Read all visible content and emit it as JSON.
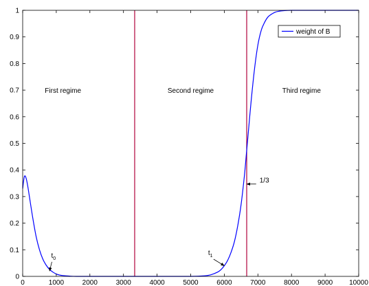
{
  "chart_data": {
    "type": "line",
    "xlim": [
      0,
      10000
    ],
    "ylim": [
      0,
      1
    ],
    "x_ticks": [
      0,
      1000,
      2000,
      3000,
      4000,
      5000,
      6000,
      7000,
      8000,
      9000,
      10000
    ],
    "y_ticks": [
      0,
      0.1,
      0.2,
      0.3,
      0.4,
      0.5,
      0.6,
      0.7,
      0.8,
      0.9,
      1
    ],
    "grid": false,
    "legend": {
      "position": "top-right",
      "entries": [
        "weight of B"
      ]
    },
    "series": [
      {
        "name": "weight of B",
        "color": "#0000ff",
        "x": [
          0,
          50,
          100,
          150,
          200,
          300,
          400,
          500,
          600,
          700,
          800,
          900,
          1000,
          1100,
          1200,
          1400,
          1600,
          2000,
          3000,
          4000,
          5000,
          5400,
          5600,
          5800,
          5900,
          6000,
          6100,
          6200,
          6300,
          6400,
          6500,
          6600,
          6650,
          6700,
          6800,
          6900,
          7000,
          7100,
          7200,
          7300,
          7400,
          7500,
          7600,
          7800,
          8000,
          8500,
          9000,
          10000
        ],
        "y": [
          0.33,
          0.375,
          0.37,
          0.34,
          0.3,
          0.22,
          0.15,
          0.1,
          0.065,
          0.042,
          0.026,
          0.016,
          0.009,
          0.005,
          0.003,
          0.001,
          0.0,
          0.0,
          0.0,
          0.0,
          0.0,
          0.002,
          0.006,
          0.016,
          0.025,
          0.04,
          0.06,
          0.09,
          0.13,
          0.19,
          0.27,
          0.38,
          0.45,
          0.52,
          0.66,
          0.78,
          0.87,
          0.925,
          0.955,
          0.975,
          0.985,
          0.992,
          0.996,
          0.999,
          1.0,
          1.0,
          1.0,
          1.0
        ]
      }
    ],
    "vertical_lines": [
      {
        "x": 3333,
        "color": "#b0003a"
      },
      {
        "x": 6667,
        "color": "#b0003a"
      }
    ],
    "regions": [
      {
        "label": "First regime",
        "x": 1200,
        "y": 0.7
      },
      {
        "label": "Second regime",
        "x": 5000,
        "y": 0.7
      },
      {
        "label": "Third regime",
        "x": 8300,
        "y": 0.7
      }
    ],
    "annotations": [
      {
        "id": "t0",
        "label": "t",
        "sub": "0",
        "arrow_to": [
          800,
          0.02
        ],
        "text_at": [
          930,
          0.065
        ]
      },
      {
        "id": "t1",
        "label": "t",
        "sub": "1",
        "arrow_to": [
          6000,
          0.04
        ],
        "text_at": [
          5600,
          0.075
        ]
      },
      {
        "id": "one-third",
        "label": "1/3",
        "arrow_to": [
          6667,
          0.347
        ],
        "text_at": [
          7050,
          0.347
        ]
      }
    ]
  }
}
